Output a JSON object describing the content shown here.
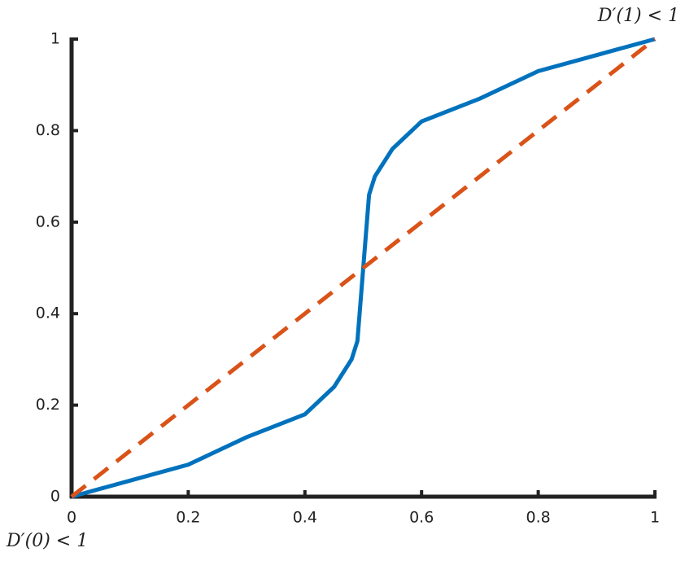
{
  "chart_data": {
    "type": "line",
    "series": [
      {
        "color": "#0072bd",
        "dash": false,
        "x": [
          0,
          0.1,
          0.2,
          0.3,
          0.4,
          0.45,
          0.48,
          0.49,
          0.5,
          0.51,
          0.52,
          0.55,
          0.6,
          0.7,
          0.8,
          0.9,
          1
        ],
        "values": [
          0,
          0.035,
          0.07,
          0.13,
          0.18,
          0.24,
          0.3,
          0.34,
          0.5,
          0.66,
          0.7,
          0.76,
          0.82,
          0.87,
          0.93,
          0.965,
          1
        ]
      },
      {
        "color": "#d95319",
        "dash": true,
        "x": [
          0,
          1
        ],
        "values": [
          0,
          1
        ]
      }
    ],
    "xlim": [
      0,
      1
    ],
    "ylim": [
      0,
      1
    ],
    "xticks": [
      0,
      0.2,
      0.4,
      0.6,
      0.8,
      1
    ],
    "yticks": [
      0,
      0.2,
      0.4,
      0.6,
      0.8,
      1
    ],
    "annotations": [
      "D′(1) < 1",
      "D′(0) < 1"
    ]
  }
}
